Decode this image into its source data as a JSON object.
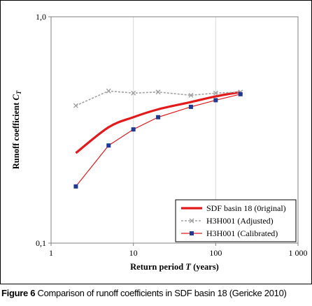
{
  "caption": {
    "label": "Figure 6",
    "text": " Comparison of runoff coefficients in SDF basin 18 (Gericke 2010)"
  },
  "colors": {
    "sdf": "#e31a1c",
    "adjusted": "#a0a0a0",
    "calibrated": "#e31a1c",
    "calibrated_marker": "#1f3a93",
    "grid": "#d9d9d9"
  },
  "chart_data": {
    "type": "line",
    "xscale": "log",
    "yscale": "log",
    "xlim": [
      1,
      1000
    ],
    "ylim": [
      0.1,
      1.0
    ],
    "xlabel_text": "Return period ",
    "xlabel_italic": "T",
    "xlabel_units": " (years)",
    "ylabel_text": "Runoff coefficient ",
    "ylabel_italic": "C",
    "ylabel_sub": "T",
    "x_ticks": [
      {
        "value": 1,
        "label": "1"
      },
      {
        "value": 10,
        "label": "10"
      },
      {
        "value": 100,
        "label": "100"
      },
      {
        "value": 1000,
        "label": "1 000"
      }
    ],
    "y_ticks": [
      {
        "value": 0.1,
        "label": "0,1"
      },
      {
        "value": 1.0,
        "label": "1,0"
      }
    ],
    "grid": "vertical at major x ticks",
    "legend_position": "bottom-right",
    "series": [
      {
        "name": "SDF basin 18 (0riginal)",
        "style": "thick solid line",
        "x": [
          2,
          5,
          10,
          20,
          50,
          100,
          200
        ],
        "y": [
          0.25,
          0.325,
          0.36,
          0.39,
          0.42,
          0.445,
          0.465
        ]
      },
      {
        "name": "H3H001 (Adjusted)",
        "style": "dashed line with x markers",
        "x": [
          2,
          5,
          10,
          20,
          50,
          100,
          200
        ],
        "y": [
          0.405,
          0.47,
          0.46,
          0.465,
          0.45,
          0.46,
          0.465
        ]
      },
      {
        "name": "H3H001 (Calibrated)",
        "style": "thin solid line with square markers",
        "x": [
          2,
          5,
          10,
          20,
          50,
          100,
          200
        ],
        "y": [
          0.178,
          0.27,
          0.318,
          0.36,
          0.4,
          0.428,
          0.455
        ]
      }
    ]
  }
}
